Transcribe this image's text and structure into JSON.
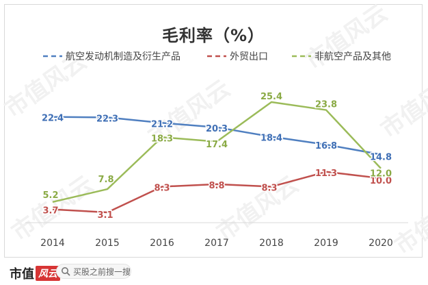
{
  "chart_data": {
    "type": "line",
    "title": "毛利率（%）",
    "categories": [
      "2014",
      "2015",
      "2016",
      "2017",
      "2018",
      "2019",
      "2020"
    ],
    "ylim": [
      0,
      30
    ],
    "grid": false,
    "legend_position": "top",
    "series": [
      {
        "name": "航空发动机制造及衍生产品",
        "color": "#4f7fc0",
        "label_color": "#3f6fb5",
        "values": [
          22.4,
          22.3,
          21.2,
          20.3,
          18.4,
          16.8,
          14.8
        ]
      },
      {
        "name": "外贸出口",
        "color": "#c0504d",
        "label_color": "#c0504d",
        "values": [
          3.7,
          3.1,
          8.3,
          8.8,
          8.3,
          11.3,
          10.0
        ]
      },
      {
        "name": "非航空产品及其他",
        "color": "#9bbb59",
        "label_color": "#8aaa45",
        "values": [
          5.2,
          7.8,
          18.3,
          17.4,
          25.4,
          23.8,
          12.0
        ]
      }
    ],
    "labels": [
      [
        "22.4",
        "22.3",
        "21.2",
        "20.3",
        "18.4",
        "16.8",
        "14.8"
      ],
      [
        "3.7",
        "3.1",
        "8.3",
        "8.8",
        "8.3",
        "11.3",
        "10.0"
      ],
      [
        "5.2",
        "7.8",
        "18.3",
        "17.4",
        "25.4",
        "23.8",
        "12.0"
      ]
    ]
  },
  "watermark": {
    "text": "市值风云"
  },
  "footer": {
    "brand": "市值",
    "brand_mark": "风云",
    "search_placeholder": "买股之前搜一搜",
    "search_icon": "search-icon"
  }
}
